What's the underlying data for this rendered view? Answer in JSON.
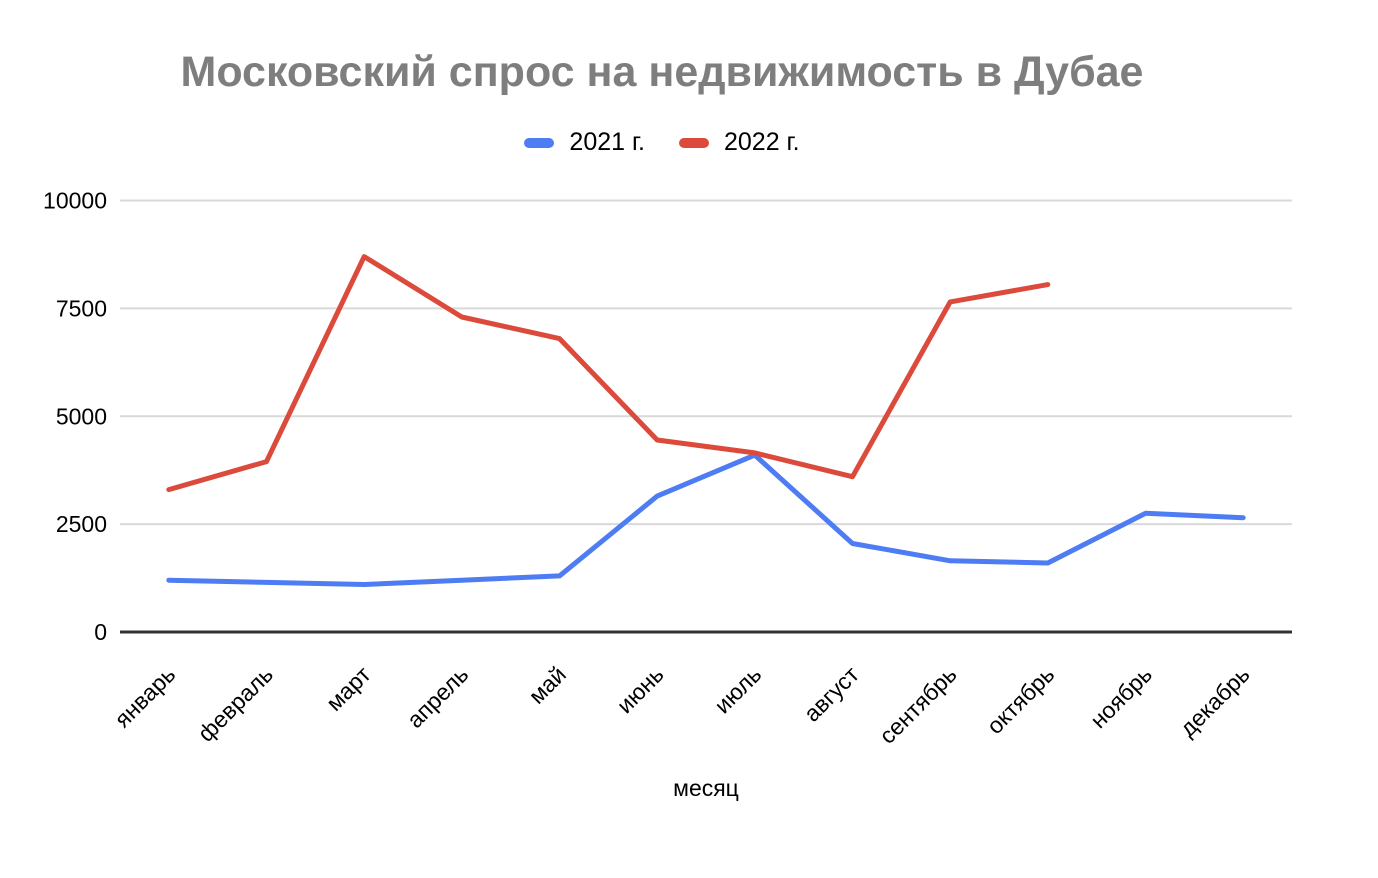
{
  "title": "Московский спрос на недвижимость в Дубае",
  "chart_data": {
    "type": "line",
    "title": "Московский спрос на недвижимость в Дубае",
    "xlabel": "месяц",
    "ylabel": "",
    "categories": [
      "январь",
      "февраль",
      "март",
      "апрель",
      "май",
      "июнь",
      "июль",
      "август",
      "сентябрь",
      "октябрь",
      "ноябрь",
      "декабрь"
    ],
    "series": [
      {
        "name": "2021 г.",
        "color": "#4e7cf2",
        "values": [
          1200,
          1150,
          1100,
          1200,
          1300,
          3150,
          4100,
          2050,
          1650,
          1600,
          2750,
          2650
        ]
      },
      {
        "name": "2022 г.",
        "color": "#db4a3b",
        "values": [
          3300,
          3950,
          8700,
          7300,
          6800,
          4450,
          4150,
          3600,
          7650,
          8050,
          null,
          null
        ]
      }
    ],
    "yticks": [
      0,
      2500,
      5000,
      7500,
      10000
    ],
    "ylim": [
      0,
      10000
    ],
    "grid": true,
    "legend_position": "top",
    "x_label_rotation_deg": -45
  },
  "colors": {
    "title_text": "#7e7e7e",
    "axis_text": "#000000",
    "gridline": "#d9d9d9",
    "zero_axis": "#333333",
    "background": "#ffffff"
  }
}
